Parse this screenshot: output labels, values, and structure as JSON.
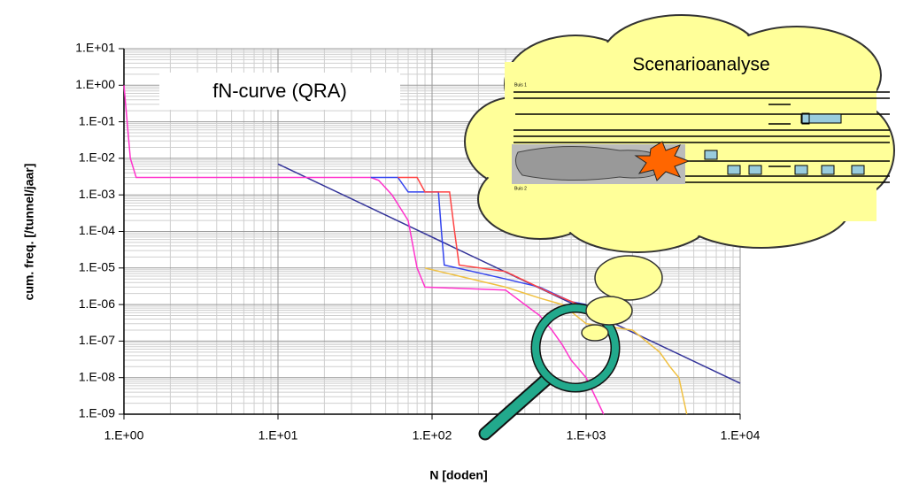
{
  "chart_data": {
    "type": "line",
    "title": "fN-curve (QRA)",
    "x_label": "N  [doden]",
    "y_label": "cum. freq. [/tunnel/jaar]",
    "x_log": true,
    "y_log": true,
    "grid": true,
    "xlim": [
      1,
      10000
    ],
    "ylim": [
      1e-09,
      10
    ],
    "xticks": [
      {
        "value": 1,
        "label": "1.E+00"
      },
      {
        "value": 10,
        "label": "1.E+01"
      },
      {
        "value": 100,
        "label": "1.E+02"
      },
      {
        "value": 1000,
        "label": "1.E+03"
      },
      {
        "value": 10000,
        "label": "1.E+04"
      }
    ],
    "yticks": [
      {
        "value": 10,
        "label": "1.E+01"
      },
      {
        "value": 1,
        "label": "1.E+00"
      },
      {
        "value": 0.1,
        "label": "1.E-01"
      },
      {
        "value": 0.01,
        "label": "1.E-02"
      },
      {
        "value": 0.001,
        "label": "1.E-03"
      },
      {
        "value": 0.0001,
        "label": "1.E-04"
      },
      {
        "value": 1e-05,
        "label": "1.E-05"
      },
      {
        "value": 1e-06,
        "label": "1.E-06"
      },
      {
        "value": 1e-07,
        "label": "1.E-07"
      },
      {
        "value": 1e-08,
        "label": "1.E-08"
      },
      {
        "value": 1e-09,
        "label": "1.E-09"
      }
    ],
    "series": [
      {
        "color": "#333399",
        "x": [
          10,
          10000
        ],
        "values": [
          0.007,
          7e-09
        ]
      },
      {
        "color": "#f0c040",
        "x": [
          90,
          150,
          300,
          500,
          700,
          1000,
          2000,
          3000,
          3500,
          4000,
          4500
        ],
        "values": [
          1e-05,
          6e-06,
          3e-06,
          1.5e-06,
          1e-06,
          3e-07,
          2e-07,
          5e-08,
          2e-08,
          1e-08,
          1e-09
        ]
      },
      {
        "color": "#ff33cc",
        "x": [
          1,
          1.1,
          1.2,
          40,
          45,
          55,
          70,
          80,
          90,
          300,
          400,
          500,
          600,
          700,
          800,
          1000,
          1300
        ],
        "values": [
          1,
          0.01,
          0.003,
          0.003,
          0.0025,
          0.001,
          0.0002,
          1e-05,
          3e-06,
          2.5e-06,
          1e-06,
          5e-07,
          2e-07,
          8e-08,
          3e-08,
          1e-08,
          1e-09
        ]
      },
      {
        "color": "#3344ee",
        "x": [
          40,
          60,
          70,
          110,
          115,
          120,
          300,
          500,
          800,
          1000
        ],
        "values": [
          0.003,
          0.003,
          0.0012,
          0.0012,
          0.0001,
          1.2e-05,
          5e-06,
          3e-06,
          1.2e-06,
          1e-06
        ]
      },
      {
        "color": "#ff4444",
        "x": [
          60,
          80,
          90,
          130,
          140,
          150,
          300,
          600,
          900,
          1000
        ],
        "values": [
          0.003,
          0.003,
          0.0012,
          0.0012,
          0.0001,
          1.2e-05,
          8e-06,
          2e-06,
          1e-06,
          8e-07
        ]
      }
    ],
    "annotations": {
      "cloud_title": "Scenarioanalyse",
      "tube_1": "Buis 1",
      "tube_2": "Buis 2"
    }
  }
}
